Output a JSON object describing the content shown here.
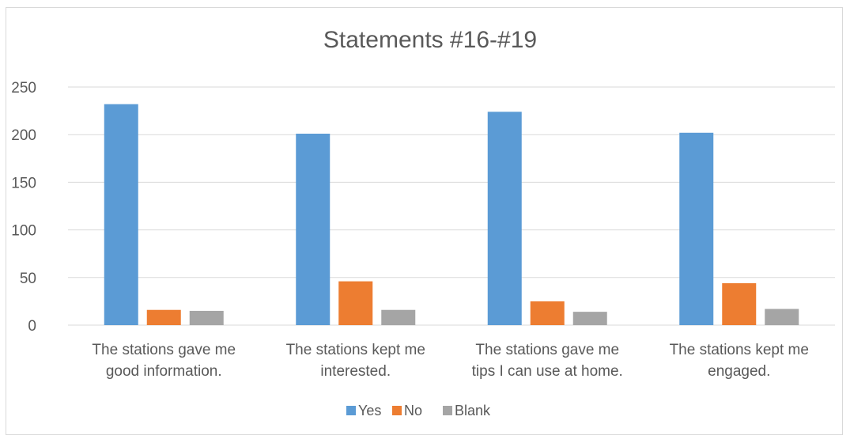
{
  "chart_data": {
    "type": "bar",
    "title": "Statements #16-#19",
    "xlabel": "",
    "ylabel": "",
    "categories": [
      [
        "The stations gave me",
        "good information."
      ],
      [
        "The stations kept me",
        "interested."
      ],
      [
        "The stations gave me",
        "tips I can use at home."
      ],
      [
        "The stations kept me",
        "engaged."
      ]
    ],
    "series": [
      {
        "name": "Yes",
        "color": "#5b9bd5",
        "values": [
          232,
          201,
          224,
          202
        ]
      },
      {
        "name": "No",
        "color": "#ed7d31",
        "values": [
          16,
          46,
          25,
          44
        ]
      },
      {
        "name": "Blank",
        "color": "#a5a5a5",
        "values": [
          15,
          16,
          14,
          17
        ]
      }
    ],
    "ylim": [
      0,
      250
    ],
    "yticks": [
      0,
      50,
      100,
      150,
      200,
      250
    ],
    "grid": true,
    "gridline_color": "#d9d9d9",
    "legend": "bottom"
  }
}
